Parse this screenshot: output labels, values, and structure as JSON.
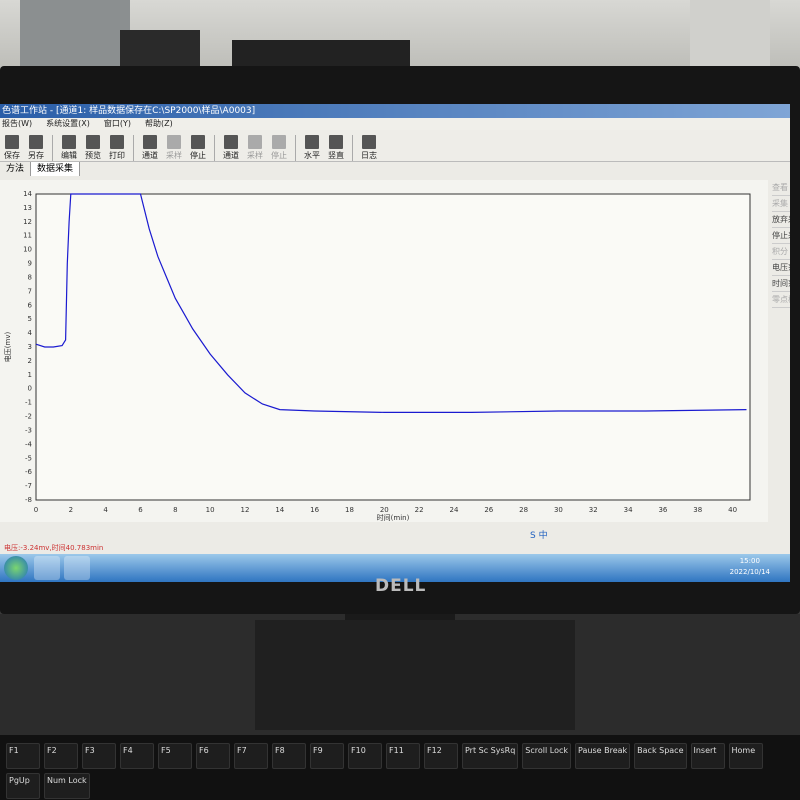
{
  "window": {
    "title": "色谱工作站 - [通道1: 样品数据保存在C:\\SP2000\\样品\\A0003]"
  },
  "menu": [
    "报告(W)",
    "系统设置(X)",
    "窗口(Y)",
    "帮助(Z)"
  ],
  "toolbar": [
    {
      "label": "保存",
      "enabled": true
    },
    {
      "label": "另存",
      "enabled": true
    },
    {
      "label": "编辑",
      "enabled": true
    },
    {
      "label": "预览",
      "enabled": true
    },
    {
      "label": "打印",
      "enabled": true
    },
    {
      "label": "通道",
      "enabled": true
    },
    {
      "label": "采样",
      "enabled": false
    },
    {
      "label": "停止",
      "enabled": true
    },
    {
      "label": "通道",
      "enabled": true
    },
    {
      "label": "采样",
      "enabled": false
    },
    {
      "label": "停止",
      "enabled": false
    },
    {
      "label": "水平",
      "enabled": true
    },
    {
      "label": "竖直",
      "enabled": true
    },
    {
      "label": "日志",
      "enabled": true
    }
  ],
  "tabs": [
    {
      "label": "方法",
      "active": false
    },
    {
      "label": "数据采集",
      "active": true
    }
  ],
  "right_panel": [
    {
      "label": "查看",
      "enabled": false
    },
    {
      "label": "采集",
      "enabled": false
    },
    {
      "label": "放弃采集",
      "enabled": true
    },
    {
      "label": "停止采集",
      "enabled": true
    },
    {
      "label": "积分",
      "enabled": false
    },
    {
      "label": "电压范围",
      "enabled": true
    },
    {
      "label": "时间范围",
      "enabled": true
    },
    {
      "label": "零点校正",
      "enabled": false
    }
  ],
  "status": {
    "text": "电压:-3.24mv,时间40.783min"
  },
  "tray": {
    "time": "15:00",
    "date": "2022/10/14",
    "ime": "S 中"
  },
  "monitor": {
    "brand": "DELL"
  },
  "keyboard": [
    "F1",
    "F2",
    "F3",
    "F4",
    "F5",
    "F6",
    "F7",
    "F8",
    "F9",
    "F10",
    "F11",
    "F12",
    "Prt Sc SysRq",
    "Scroll Lock",
    "Pause Break",
    "Back Space",
    "Insert",
    "Home",
    "PgUp",
    "Num Lock"
  ],
  "chart_data": {
    "type": "line",
    "xlabel": "时间(min)",
    "ylabel": "电压(mv)",
    "xlim": [
      0,
      41
    ],
    "ylim": [
      -8,
      14
    ],
    "xticks": [
      0,
      2,
      4,
      6,
      8,
      10,
      12,
      14,
      16,
      18,
      20,
      22,
      24,
      26,
      28,
      30,
      32,
      34,
      36,
      38,
      40
    ],
    "yticks": [
      -8,
      -7,
      -6,
      -5,
      -4,
      -3,
      -2,
      -1,
      0,
      1,
      2,
      3,
      4,
      5,
      6,
      7,
      8,
      9,
      10,
      11,
      12,
      13,
      14
    ],
    "series": [
      {
        "color": "#1a1ad0",
        "x": [
          0,
          0.5,
          1,
          1.5,
          1.7,
          1.8,
          1.9,
          2.0,
          6.0,
          6.5,
          7,
          7.5,
          8,
          8.5,
          9,
          10,
          11,
          12,
          13,
          14,
          16,
          20,
          25,
          30,
          35,
          40.8
        ],
        "y": [
          3.2,
          3.0,
          3.0,
          3.1,
          3.5,
          9,
          12,
          14,
          14,
          11.5,
          9.5,
          8,
          6.5,
          5.4,
          4.3,
          2.5,
          1.0,
          -0.3,
          -1.1,
          -1.5,
          -1.6,
          -1.7,
          -1.7,
          -1.6,
          -1.6,
          -1.5
        ]
      }
    ],
    "grid": false
  }
}
